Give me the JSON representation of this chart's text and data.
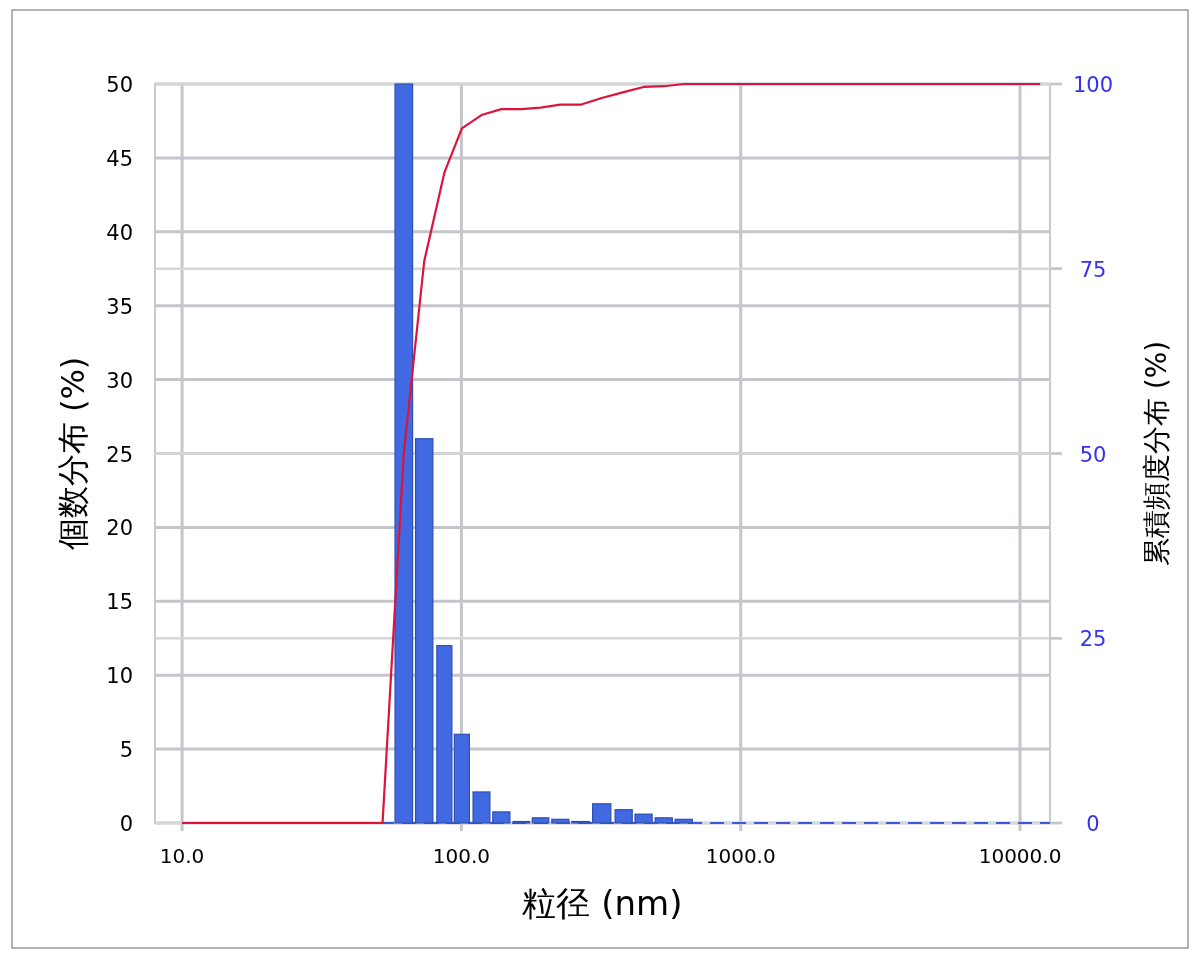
{
  "chart_data": {
    "type": "bar",
    "xlabel": "粒径 (nm)",
    "ylabel": "個数分布 (%)",
    "y2label": "累積頻度分布 (%)",
    "log": "x",
    "xlim": [
      8,
      12800
    ],
    "xticks": [
      {
        "value": 10,
        "label": "10.0"
      },
      {
        "value": 100,
        "label": "100.0"
      },
      {
        "value": 1000,
        "label": "1000.0"
      },
      {
        "value": 10000,
        "label": "10000.0"
      }
    ],
    "ylim": [
      0,
      50
    ],
    "yticks": [
      0,
      5,
      10,
      15,
      20,
      25,
      30,
      35,
      40,
      45,
      50
    ],
    "y2lim": [
      0,
      100
    ],
    "y2ticks": [
      0,
      25,
      50,
      75,
      100
    ],
    "grid": true,
    "ref_lines": [
      {
        "axis": "y",
        "value": 0,
        "color": "#3a5bd9",
        "line_style": "dashed"
      }
    ],
    "series": [
      {
        "color": "#4169e1",
        "x": [
          62.2,
          73.6,
          86.9,
          100.4,
          118,
          139,
          164,
          192,
          226,
          267,
          318,
          381,
          449,
          530,
          625
        ],
        "values": [
          50,
          26,
          12,
          6,
          2.1,
          0.75,
          0,
          0.35,
          0.25,
          0,
          1.3,
          0.9,
          0.6,
          0.35,
          0.25
        ]
      },
      {
        "type": "line",
        "axis": "y2",
        "color": "#dc143c",
        "x": [
          10,
          52.2,
          62.2,
          73.6,
          86.9,
          100.4,
          118,
          139,
          164,
          192,
          226,
          267,
          318,
          381,
          449,
          530,
          625,
          11800
        ],
        "values": [
          0,
          0,
          50,
          76,
          88,
          94,
          95.8,
          96.6,
          96.6,
          96.8,
          97.2,
          97.2,
          98.1,
          98.9,
          99.6,
          99.7,
          100,
          100
        ]
      }
    ]
  }
}
